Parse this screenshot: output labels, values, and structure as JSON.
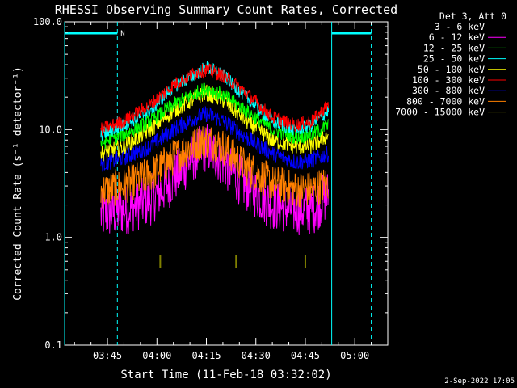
{
  "chart_data": {
    "type": "line",
    "title": "RHESSI Observing Summary Count Rates, Corrected",
    "xlabel": "Start Time (11-Feb-18 03:32:02)",
    "ylabel": "Corrected Count Rate (s⁻¹ detector⁻¹)",
    "yscale": "log",
    "ylim": [
      0.1,
      100.0
    ],
    "xlim": [
      "03:32",
      "05:10"
    ],
    "x_tick_labels": [
      "03:45",
      "04:00",
      "04:15",
      "04:30",
      "04:45",
      "05:00"
    ],
    "y_tick_labels": [
      "0.1",
      "1.0",
      "10.0",
      "100.0"
    ],
    "legend_header": "Det 3, Att 0",
    "legend_position": "right",
    "timestamp": "2-Sep-2022 17:05",
    "night_flag_label": "N",
    "series": [
      {
        "name": "3 - 6 keV",
        "color": "#000000",
        "x": [
          "03:43",
          "03:50",
          "03:58",
          "04:05",
          "04:12",
          "04:15",
          "04:20",
          "04:27",
          "04:35",
          "04:42",
          "04:47",
          "04:52"
        ],
        "values": [
          5,
          6,
          7,
          9,
          12,
          13,
          11,
          8,
          6,
          6,
          6,
          7
        ]
      },
      {
        "name": "6 - 12 keV",
        "color": "#ff00ff",
        "x": [
          "03:43",
          "03:50",
          "03:58",
          "04:05",
          "04:12",
          "04:15",
          "04:20",
          "04:27",
          "04:35",
          "04:42",
          "04:47",
          "04:52"
        ],
        "values": [
          1.6,
          1.8,
          2.2,
          3.5,
          6,
          7,
          5,
          3,
          2,
          1.8,
          1.8,
          2.5
        ]
      },
      {
        "name": "12 - 25 keV",
        "color": "#00ff00",
        "x": [
          "03:43",
          "03:50",
          "03:58",
          "04:05",
          "04:12",
          "04:15",
          "04:20",
          "04:27",
          "04:35",
          "04:42",
          "04:47",
          "04:52"
        ],
        "values": [
          7.5,
          9,
          12,
          17,
          22,
          24,
          21,
          15,
          10,
          8.5,
          9,
          11
        ]
      },
      {
        "name": "25 - 50 keV",
        "color": "#00ffff",
        "x": [
          "03:43",
          "03:50",
          "03:58",
          "04:05",
          "04:12",
          "04:15",
          "04:20",
          "04:27",
          "04:35",
          "04:42",
          "04:47",
          "04:52"
        ],
        "values": [
          9,
          11,
          15,
          25,
          33,
          38,
          32,
          20,
          12,
          10,
          11,
          15
        ]
      },
      {
        "name": "50 - 100 keV",
        "color": "#ffff00",
        "x": [
          "03:43",
          "03:50",
          "03:58",
          "04:05",
          "04:12",
          "04:15",
          "04:20",
          "04:27",
          "04:35",
          "04:42",
          "04:47",
          "04:52"
        ],
        "values": [
          6,
          7,
          10,
          15,
          20,
          22,
          19,
          12,
          8,
          7,
          7,
          9
        ]
      },
      {
        "name": "100 - 300 keV",
        "color": "#ff0000",
        "x": [
          "03:43",
          "03:50",
          "03:58",
          "04:05",
          "04:12",
          "04:15",
          "04:20",
          "04:27",
          "04:35",
          "04:42",
          "04:47",
          "04:52"
        ],
        "values": [
          10,
          12,
          17,
          26,
          34,
          36,
          32,
          22,
          13,
          11,
          12,
          17
        ]
      },
      {
        "name": "300 - 800 keV",
        "color": "#0000ff",
        "x": [
          "03:43",
          "03:50",
          "03:58",
          "04:05",
          "04:12",
          "04:15",
          "04:20",
          "04:27",
          "04:35",
          "04:42",
          "04:47",
          "04:52"
        ],
        "values": [
          4.8,
          5.5,
          7,
          10,
          13,
          14,
          12,
          8.5,
          6,
          5,
          5.2,
          6
        ]
      },
      {
        "name": "800 - 7000 keV",
        "color": "#ff8000",
        "x": [
          "03:43",
          "03:50",
          "03:58",
          "04:05",
          "04:12",
          "04:15",
          "04:20",
          "04:27",
          "04:35",
          "04:42",
          "04:47",
          "04:52"
        ],
        "values": [
          2.7,
          3,
          3.8,
          5.5,
          7.5,
          8,
          7,
          4.5,
          3.2,
          2.8,
          2.8,
          3.2
        ]
      },
      {
        "name": "7000 - 15000 keV",
        "color": "#808000",
        "x": [
          "04:01",
          "04:24",
          "04:45"
        ],
        "values": [
          0.6,
          0.6,
          0.6
        ]
      }
    ],
    "night_intervals": [
      [
        "03:32",
        "03:48"
      ],
      [
        "04:53",
        "05:05"
      ]
    ]
  }
}
